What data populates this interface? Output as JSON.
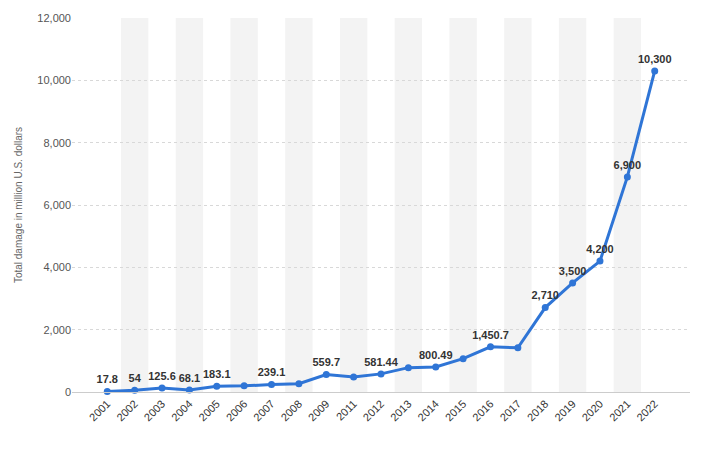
{
  "chart_data": {
    "type": "line",
    "y_label": "Total damage in million U.S. dollars",
    "categories": [
      "2001",
      "2002",
      "2003",
      "2004",
      "2005",
      "2006",
      "2007",
      "2008",
      "2009",
      "2011",
      "2012",
      "2013",
      "2014",
      "2015",
      "2016",
      "2017",
      "2018",
      "2019",
      "2020",
      "2021",
      "2022"
    ],
    "values": [
      17.8,
      54,
      125.6,
      68.1,
      183.1,
      197,
      239.1,
      265,
      559.7,
      485,
      581.44,
      781,
      800.49,
      1070,
      1450.7,
      1418,
      2710,
      3500,
      4200,
      6900,
      10300
    ],
    "value_labels": [
      "17.8",
      "54",
      "125.6",
      "68.1",
      "183.1",
      null,
      "239.1",
      null,
      "559.7",
      null,
      "581.44",
      null,
      "800.49",
      null,
      "1,450.7",
      null,
      "2,710",
      "3,500",
      "4,200",
      "6,900",
      "10,300"
    ],
    "data_labels": true,
    "color": "#2f75d6",
    "marker": "circle",
    "line_style": "solid",
    "ylim": [
      0,
      12000
    ],
    "yticks": [
      0,
      {
        "value": 2000,
        "label": "2,000"
      },
      {
        "value": 4000,
        "label": "4,000"
      },
      {
        "value": 6000,
        "label": "6,000"
      },
      {
        "value": 8000,
        "label": "8,000"
      },
      {
        "value": 10000,
        "label": "10,000"
      },
      {
        "value": 12000,
        "label": "12,000"
      }
    ],
    "grid": true
  }
}
